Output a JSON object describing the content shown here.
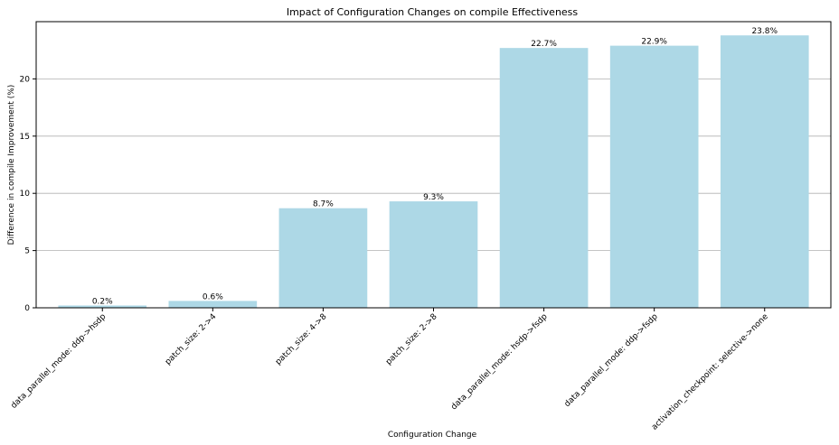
{
  "chart_data": {
    "type": "bar",
    "title": "Impact of Configuration Changes on compile Effectiveness",
    "xlabel": "Configuration Change",
    "ylabel": "Difference in compile Improvement (%)",
    "categories": [
      "data_parallel_mode: ddp->hsdp",
      "patch_size: 2->4",
      "patch_size: 4->8",
      "patch_size: 2->8",
      "data_parallel_mode: hsdp->fsdp",
      "data_parallel_mode: ddp->fsdp",
      "activation_checkpoint: selective->none"
    ],
    "values": [
      0.2,
      0.6,
      8.7,
      9.3,
      22.7,
      22.9,
      23.8
    ],
    "value_labels": [
      "0.2%",
      "0.6%",
      "8.7%",
      "9.3%",
      "22.7%",
      "22.9%",
      "23.8%"
    ],
    "yticks": [
      0,
      5,
      10,
      15,
      20
    ],
    "ylim": [
      0,
      25
    ],
    "grid": "y-major",
    "bar_color": "#add8e6"
  }
}
